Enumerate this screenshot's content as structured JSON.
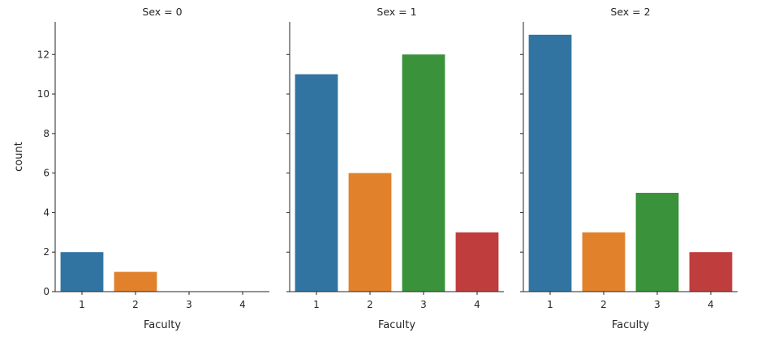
{
  "chart_data": {
    "type": "bar",
    "ylabel": "count",
    "ylim": [
      0,
      13.65
    ],
    "yticks": [
      0,
      2,
      4,
      6,
      8,
      10,
      12
    ],
    "categories": [
      "1",
      "2",
      "3",
      "4"
    ],
    "xlabel": "Faculty",
    "colors": [
      "#3274a1",
      "#e1812c",
      "#3a923a",
      "#c03d3e"
    ],
    "panels": [
      {
        "title": "Sex = 0",
        "values": [
          2,
          1,
          0,
          0
        ]
      },
      {
        "title": "Sex = 1",
        "values": [
          11,
          6,
          12,
          3
        ]
      },
      {
        "title": "Sex = 2",
        "values": [
          13,
          3,
          5,
          2
        ]
      }
    ]
  }
}
